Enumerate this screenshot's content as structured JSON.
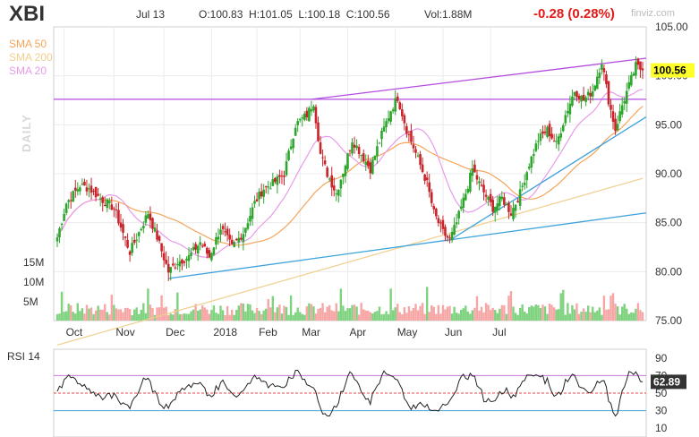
{
  "header": {
    "ticker": "XBI",
    "date": "Jul 13",
    "ohlc": "O:100.83  H:101.05  L:100.18  C:100.56",
    "volume": "Vol:1.88M",
    "change": "-0.28 (0.28%)",
    "watermark": "finviz.com"
  },
  "legend": {
    "sma50": "SMA 50",
    "sma200": "SMA 200",
    "sma20": "SMA 20"
  },
  "side_label": "DAILY",
  "volume_axis": [
    "15M",
    "10M",
    "5M"
  ],
  "rsi_title": "RSI 14",
  "colors": {
    "up": "#2ea62e",
    "down": "#c8242a",
    "sma50": "#f5a55a",
    "sma200": "#f0cf8c",
    "sma20": "#e89bea",
    "trend_purple": "#b44ce0",
    "trend_blue": "#3ea3dc",
    "vol_up": "#7fd27f",
    "vol_down": "#f7a6a6",
    "price_tag": "#ffff2a"
  },
  "chart_data": [
    {
      "type": "candlestick",
      "ylim": [
        75,
        105
      ],
      "y_ticks": [
        "105.00",
        "100.00",
        "95.00",
        "90.00",
        "85.00",
        "80.00",
        "75.00"
      ],
      "x_ticks": [
        "Oct",
        "Nov",
        "Dec",
        "2018",
        "Feb",
        "Mar",
        "Apr",
        "May",
        "Jun",
        "Jul"
      ],
      "last_price_label": "100.56",
      "close_anchors": [
        [
          0,
          83.5
        ],
        [
          4,
          87
        ],
        [
          10,
          88.8
        ],
        [
          14,
          88.5
        ],
        [
          20,
          87.3
        ],
        [
          25,
          86.5
        ],
        [
          32,
          82
        ],
        [
          36,
          84
        ],
        [
          40,
          86
        ],
        [
          44,
          83.5
        ],
        [
          49,
          80
        ],
        [
          53,
          81
        ],
        [
          58,
          81.5
        ],
        [
          63,
          83
        ],
        [
          67,
          81.5
        ],
        [
          72,
          84.5
        ],
        [
          77,
          82.5
        ],
        [
          82,
          84
        ],
        [
          87,
          87
        ],
        [
          91,
          88.5
        ],
        [
          95,
          89
        ],
        [
          100,
          90
        ],
        [
          105,
          95
        ],
        [
          110,
          96
        ],
        [
          113,
          97.3
        ],
        [
          116,
          92
        ],
        [
          119,
          90
        ],
        [
          123,
          88
        ],
        [
          127,
          91
        ],
        [
          130,
          93.5
        ],
        [
          134,
          92
        ],
        [
          138,
          90.5
        ],
        [
          143,
          94
        ],
        [
          147,
          96.5
        ],
        [
          150,
          97.8
        ],
        [
          154,
          94.5
        ],
        [
          159,
          91.5
        ],
        [
          163,
          89
        ],
        [
          166,
          86
        ],
        [
          170,
          84
        ],
        [
          173,
          83.2
        ],
        [
          176,
          85
        ],
        [
          180,
          88
        ],
        [
          183,
          90.5
        ],
        [
          187,
          88.5
        ],
        [
          192,
          86.5
        ],
        [
          196,
          87.5
        ],
        [
          200,
          86
        ],
        [
          204,
          88
        ],
        [
          208,
          91
        ],
        [
          212,
          93.5
        ],
        [
          216,
          94.5
        ],
        [
          220,
          93
        ],
        [
          224,
          96
        ],
        [
          228,
          98.5
        ],
        [
          232,
          97.5
        ],
        [
          236,
          98.5
        ],
        [
          240,
          101.5
        ],
        [
          243,
          97.5
        ],
        [
          246,
          94.5
        ],
        [
          249,
          97
        ],
        [
          252,
          99
        ],
        [
          255,
          101
        ],
        [
          258,
          100.56
        ]
      ]
    },
    {
      "type": "line",
      "name": "RSI 14",
      "ylim": [
        0,
        100
      ],
      "y_ticks": [
        "90",
        "70",
        "50",
        "30",
        "10"
      ],
      "levels": [
        70,
        50,
        30
      ],
      "last_label": "62.89"
    }
  ]
}
